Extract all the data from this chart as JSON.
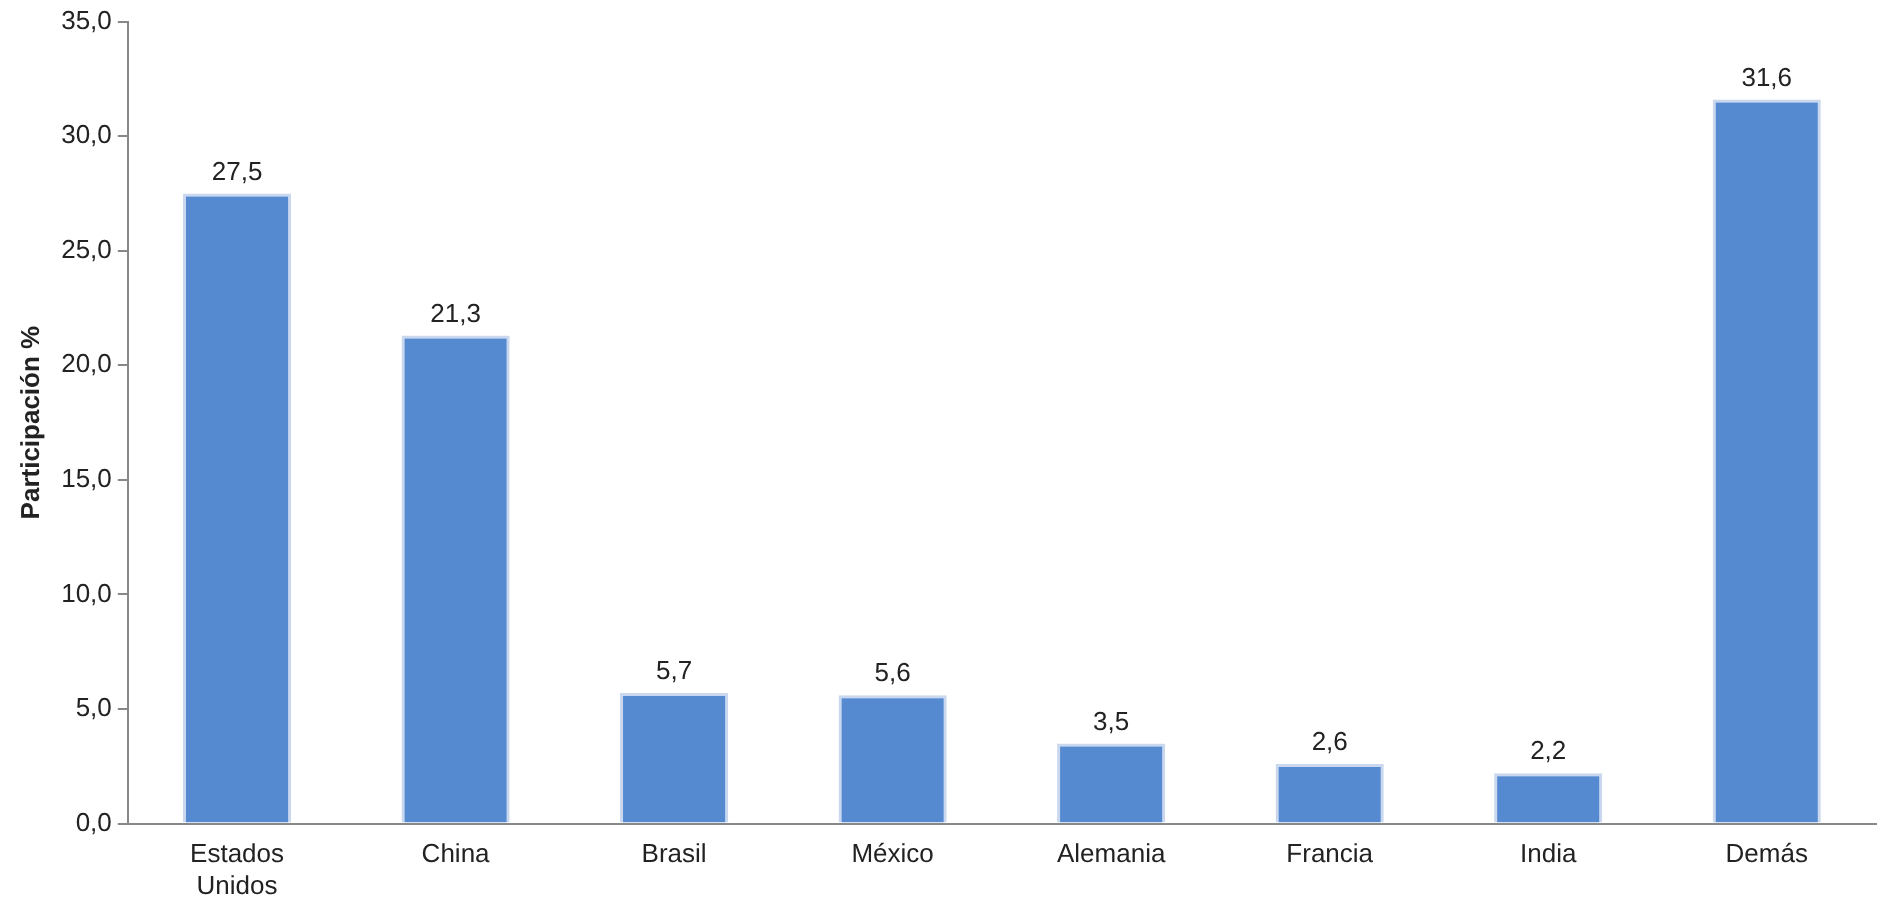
{
  "chart_data": {
    "type": "bar",
    "ylabel": "Participación %",
    "categories": [
      "Estados Unidos",
      "China",
      "Brasil",
      "México",
      "Alemania",
      "Francia",
      "India",
      "Demás"
    ],
    "values": [
      27.5,
      21.3,
      5.7,
      5.6,
      3.5,
      2.6,
      2.2,
      31.6
    ],
    "value_labels": [
      "27,5",
      "21,3",
      "5,7",
      "5,6",
      "3,5",
      "2,6",
      "2,2",
      "31,6"
    ],
    "color": "#558ad0",
    "ylim": [
      0,
      35
    ],
    "yticks": [
      {
        "value": 0,
        "label": "0,0"
      },
      {
        "value": 5,
        "label": "5,0"
      },
      {
        "value": 10,
        "label": "10,0"
      },
      {
        "value": 15,
        "label": "15,0"
      },
      {
        "value": 20,
        "label": "20,0"
      },
      {
        "value": 25,
        "label": "25,0"
      },
      {
        "value": 30,
        "label": "30,0"
      },
      {
        "value": 35,
        "label": "35,0"
      }
    ],
    "grid": false,
    "legend": false
  }
}
